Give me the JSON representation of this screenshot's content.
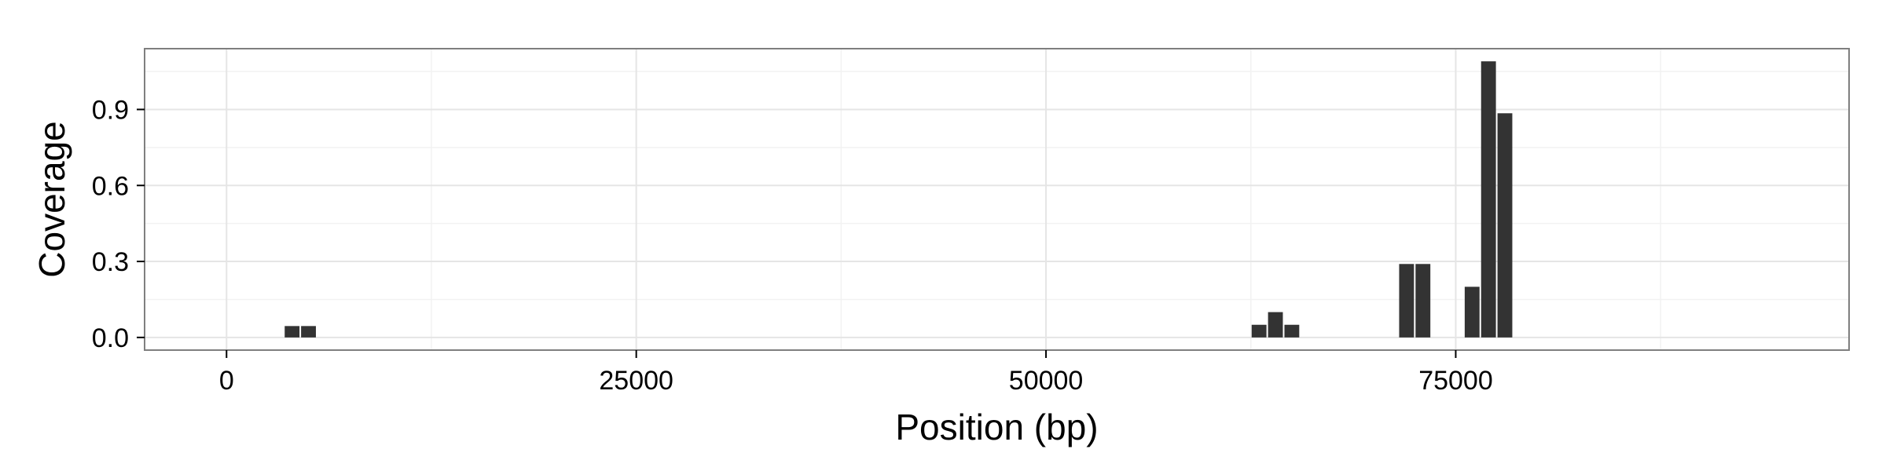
{
  "chart_data": {
    "type": "bar",
    "title": "",
    "xlabel": "Position (bp)",
    "ylabel": "Coverage",
    "xlim": [
      -5000,
      99000
    ],
    "ylim": [
      -0.05,
      1.14
    ],
    "xticks": [
      0,
      25000,
      50000,
      75000
    ],
    "xtick_labels": [
      "0",
      "25000",
      "50000",
      "75000"
    ],
    "yticks": [
      0.0,
      0.3,
      0.6,
      0.9
    ],
    "ytick_labels": [
      "0.0",
      "0.3",
      "0.6",
      "0.9"
    ],
    "grid": true,
    "bin_width": 1000,
    "bar_color": "#333333",
    "x": [
      4000,
      5000,
      63000,
      64000,
      65000,
      72000,
      73000,
      76000,
      77000,
      78000
    ],
    "values": [
      0.045,
      0.045,
      0.05,
      0.1,
      0.05,
      0.29,
      0.29,
      0.2,
      1.09,
      0.885
    ]
  }
}
